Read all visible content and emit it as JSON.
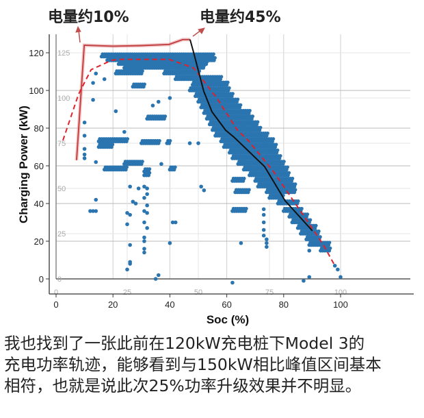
{
  "annotations": {
    "left_label": "电量约10%",
    "right_label": "电量约45%",
    "arrow_color": "#c0504d"
  },
  "caption": {
    "lines": [
      "我也找到了一张此前在120kW充电桩下Model 3的",
      "充电功率轨迹，能够看到与150kW相比峰值区间基本",
      "相符，也就是说此次25%功率升级效果并不明显。"
    ]
  },
  "chart_data": {
    "type": "scatter",
    "xlabel": "Soc (%)",
    "ylabel": "Charging Power (kW)",
    "xlim": [
      -3,
      103
    ],
    "ylim": [
      -7,
      135
    ],
    "x_ticks": [
      "0",
      "20",
      "40",
      "60",
      "80",
      "100"
    ],
    "y_ticks": [
      "0",
      "20",
      "40",
      "60",
      "80",
      "100",
      "120"
    ],
    "overlay_x_ticks": [
      "0",
      "25",
      "50",
      "75",
      "100"
    ],
    "overlay_y_ticks": [
      "0",
      "25",
      "50",
      "75",
      "100",
      "125"
    ],
    "grid": true,
    "colors": {
      "points": "#2a74b0",
      "solid_line": "#c0393b",
      "dashed_line": "#e0202a",
      "black_line": "#111111"
    },
    "point_runs": [
      {
        "y": 118,
        "x0": 16,
        "x1": 55
      },
      {
        "y": 116,
        "x0": 18,
        "x1": 56
      },
      {
        "y": 114,
        "x0": 22,
        "x1": 53
      },
      {
        "y": 112,
        "x0": 24,
        "x1": 52
      },
      {
        "y": 109,
        "x0": 21,
        "x1": 30
      },
      {
        "y": 109,
        "x0": 38,
        "x1": 50
      },
      {
        "y": 106,
        "x0": 42,
        "x1": 58
      },
      {
        "y": 103,
        "x0": 48,
        "x1": 60
      },
      {
        "y": 102,
        "x0": 27,
        "x1": 31
      },
      {
        "y": 100,
        "x0": 47,
        "x1": 61
      },
      {
        "y": 97,
        "x0": 49,
        "x1": 62
      },
      {
        "y": 94,
        "x0": 50,
        "x1": 64
      },
      {
        "y": 91,
        "x0": 51,
        "x1": 65
      },
      {
        "y": 88,
        "x0": 52,
        "x1": 68
      },
      {
        "y": 85,
        "x0": 53,
        "x1": 69
      },
      {
        "y": 85,
        "x0": 32,
        "x1": 38
      },
      {
        "y": 82,
        "x0": 54,
        "x1": 71
      },
      {
        "y": 79,
        "x0": 55,
        "x1": 72
      },
      {
        "y": 76,
        "x0": 56,
        "x1": 74
      },
      {
        "y": 73,
        "x0": 58,
        "x1": 76
      },
      {
        "y": 73,
        "x0": 15,
        "x1": 25
      },
      {
        "y": 72,
        "x0": 30,
        "x1": 36
      },
      {
        "y": 72,
        "x0": 39,
        "x1": 40
      },
      {
        "y": 70,
        "x0": 59,
        "x1": 77
      },
      {
        "y": 70,
        "x0": 15,
        "x1": 20
      },
      {
        "y": 67,
        "x0": 61,
        "x1": 78
      },
      {
        "y": 64,
        "x0": 62,
        "x1": 79
      },
      {
        "y": 61,
        "x0": 64,
        "x1": 80
      },
      {
        "y": 61,
        "x0": 24,
        "x1": 30
      },
      {
        "y": 58,
        "x0": 66,
        "x1": 81
      },
      {
        "y": 58,
        "x0": 17,
        "x1": 25
      },
      {
        "y": 57,
        "x0": 31,
        "x1": 33
      },
      {
        "y": 58,
        "x0": 40,
        "x1": 42
      },
      {
        "y": 55,
        "x0": 68,
        "x1": 82
      },
      {
        "y": 55,
        "x0": 31,
        "x1": 33
      },
      {
        "y": 52,
        "x0": 62,
        "x1": 66
      },
      {
        "y": 52,
        "x0": 70,
        "x1": 83
      },
      {
        "y": 49,
        "x0": 71,
        "x1": 84
      },
      {
        "y": 46,
        "x0": 74,
        "x1": 84
      },
      {
        "y": 46,
        "x0": 63,
        "x1": 68
      },
      {
        "y": 43,
        "x0": 75,
        "x1": 80
      },
      {
        "y": 40,
        "x0": 78,
        "x1": 85
      },
      {
        "y": 36,
        "x0": 62,
        "x1": 67
      },
      {
        "y": 36,
        "x0": 80,
        "x1": 86
      },
      {
        "y": 33,
        "x0": 82,
        "x1": 88
      },
      {
        "y": 30,
        "x0": 83,
        "x1": 89
      },
      {
        "y": 27,
        "x0": 85,
        "x1": 91
      },
      {
        "y": 24,
        "x0": 86,
        "x1": 92
      },
      {
        "y": 21,
        "x0": 88,
        "x1": 93
      },
      {
        "y": 18,
        "x0": 89,
        "x1": 96
      },
      {
        "y": 15,
        "x0": 93,
        "x1": 96
      }
    ],
    "points": [
      [
        10,
        69
      ],
      [
        10,
        66
      ],
      [
        10,
        64
      ],
      [
        14,
        62
      ],
      [
        14,
        42
      ],
      [
        12,
        36
      ],
      [
        13,
        36
      ],
      [
        14,
        36
      ],
      [
        26,
        49
      ],
      [
        25,
        35
      ],
      [
        26,
        34
      ],
      [
        27,
        41
      ],
      [
        28,
        40
      ],
      [
        25,
        29
      ],
      [
        26,
        18
      ],
      [
        26,
        9
      ],
      [
        26,
        8
      ],
      [
        25,
        5
      ],
      [
        29,
        48
      ],
      [
        31,
        49
      ],
      [
        31,
        43
      ],
      [
        31,
        36
      ],
      [
        31,
        30
      ],
      [
        31,
        22
      ],
      [
        31,
        20
      ],
      [
        31,
        16
      ],
      [
        31,
        14
      ],
      [
        32,
        39
      ],
      [
        32,
        35
      ],
      [
        32,
        27
      ],
      [
        32,
        45
      ],
      [
        32,
        48
      ],
      [
        35,
        0
      ],
      [
        36,
        2
      ],
      [
        40,
        19
      ],
      [
        41,
        30
      ],
      [
        42,
        30
      ],
      [
        51,
        49
      ],
      [
        52,
        47
      ],
      [
        62,
        -2
      ],
      [
        65,
        19
      ],
      [
        73,
        37
      ],
      [
        73,
        34
      ],
      [
        73,
        30
      ],
      [
        73,
        26
      ],
      [
        73,
        23
      ],
      [
        74,
        21
      ],
      [
        74,
        19
      ],
      [
        74,
        17
      ],
      [
        87,
        -1
      ],
      [
        89,
        15
      ],
      [
        89,
        1
      ],
      [
        98,
        7
      ],
      [
        99,
        5
      ],
      [
        100,
        1
      ],
      [
        10,
        83
      ],
      [
        10,
        76
      ],
      [
        13,
        95
      ],
      [
        13,
        104
      ],
      [
        14,
        109
      ],
      [
        17,
        106
      ],
      [
        21,
        89
      ],
      [
        47,
        72
      ],
      [
        50,
        72
      ],
      [
        37,
        61
      ],
      [
        24,
        78
      ],
      [
        34,
        92
      ],
      [
        36,
        94
      ],
      [
        40,
        96
      ],
      [
        44,
        110
      ]
    ],
    "lines": [
      {
        "style": "solid-red",
        "points": [
          [
            7.2,
            63
          ],
          [
            9.9,
            124
          ],
          [
            20,
            123.5
          ],
          [
            30,
            123.8
          ],
          [
            39.7,
            124.4
          ],
          [
            44.5,
            127
          ],
          [
            47.1,
            127
          ]
        ]
      },
      {
        "style": "dashed-red",
        "points": [
          [
            2.4,
            73.5
          ],
          [
            7.9,
            98
          ],
          [
            12.3,
            111
          ],
          [
            19.5,
            116
          ],
          [
            21.9,
            116.5
          ],
          [
            39.7,
            116.5
          ],
          [
            48.3,
            112
          ],
          [
            56.5,
            96
          ],
          [
            63.7,
            79
          ],
          [
            67.5,
            73.5
          ],
          [
            76.4,
            57
          ],
          [
            86.8,
            34
          ],
          [
            94,
            18
          ],
          [
            98,
            7
          ]
        ]
      },
      {
        "style": "solid-black",
        "points": [
          [
            47.1,
            127
          ],
          [
            48.3,
            120.4
          ],
          [
            51.9,
            99.6
          ],
          [
            54.8,
            88.7
          ],
          [
            59.6,
            78.9
          ],
          [
            62.7,
            75
          ],
          [
            73.3,
            59.6
          ],
          [
            80.5,
            41.5
          ],
          [
            90.1,
            25.5
          ]
        ]
      }
    ]
  }
}
